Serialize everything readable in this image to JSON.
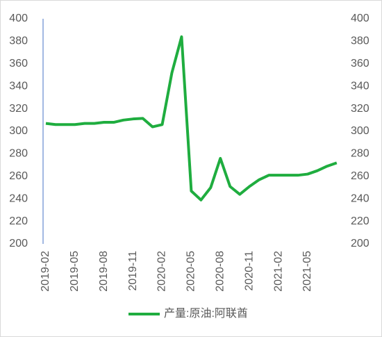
{
  "chart_data": {
    "type": "line",
    "categories": [
      "2019-02",
      null,
      null,
      "2019-05",
      null,
      null,
      "2019-08",
      null,
      null,
      "2019-11",
      null,
      null,
      "2020-02",
      null,
      null,
      "2020-05",
      null,
      null,
      "2020-08",
      null,
      null,
      "2020-11",
      null,
      null,
      "2021-02",
      null,
      null,
      "2021-05",
      null,
      null,
      null
    ],
    "series": [
      {
        "name": "产量:原油:阿联酋",
        "color": "#1fad3f",
        "values": [
          307,
          306,
          306,
          306,
          307,
          307,
          308,
          308,
          310,
          311,
          311.5,
          304,
          306,
          352,
          384,
          247,
          239,
          250,
          276,
          251,
          244,
          251,
          257,
          261,
          261,
          261,
          261,
          262,
          265,
          269,
          272
        ]
      }
    ],
    "ylim": [
      200,
      400
    ],
    "yticks": [
      200,
      220,
      240,
      260,
      280,
      300,
      320,
      340,
      360,
      380,
      400
    ],
    "y2lim": [
      200,
      400
    ],
    "y2ticks": [
      200,
      220,
      240,
      260,
      280,
      300,
      320,
      340,
      360,
      380,
      400
    ],
    "legend": "bottom"
  }
}
